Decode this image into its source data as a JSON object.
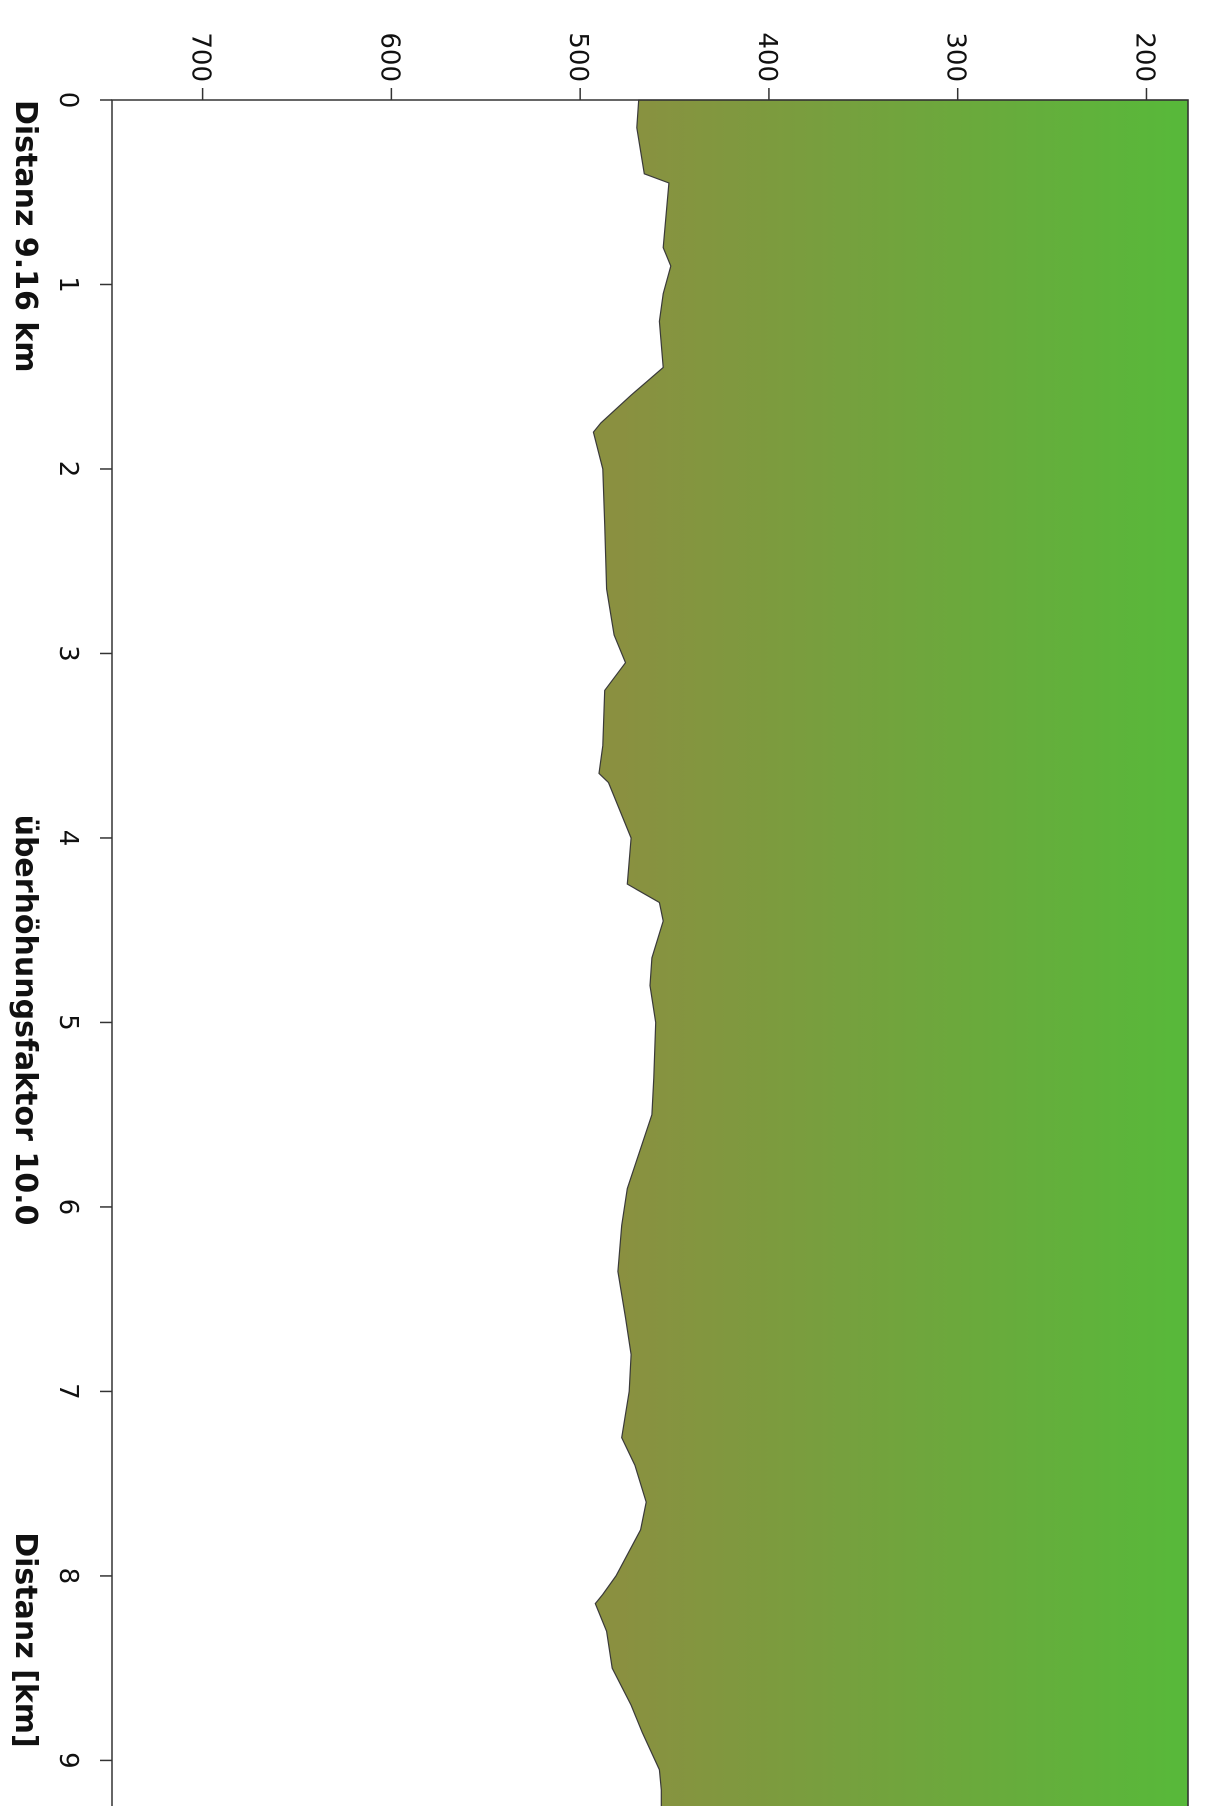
{
  "chart_data": {
    "type": "area",
    "orientation": "rotated-90-clockwise",
    "xlabel": "Distanz [km]",
    "bottom_left_text": "Distanz 9.16 km",
    "bottom_center_text": "überhöhungsfaktor 10.0",
    "xlim": [
      0,
      9.35
    ],
    "ylim": [
      178,
      748
    ],
    "x_ticks": [
      0,
      1,
      2,
      3,
      4,
      5,
      6,
      7,
      8,
      9
    ],
    "x_tick_labels": [
      "0",
      "1",
      "2",
      "3",
      "4",
      "5",
      "6",
      "7",
      "8",
      "9"
    ],
    "y_ticks": [
      200,
      300,
      400,
      500,
      600,
      700
    ],
    "y_tick_labels": [
      "200",
      "300",
      "400",
      "500",
      "600",
      "700"
    ],
    "grid": false,
    "fill_gradient": {
      "from": "#57b93a",
      "to": "#8a9040"
    },
    "series": [
      {
        "x": [
          0,
          0.15,
          0.4,
          0.45,
          0.8,
          0.9,
          1.05,
          1.2,
          1.45,
          1.6,
          1.75,
          1.8,
          2.0,
          2.3,
          2.65,
          2.9,
          3.05,
          3.2,
          3.5,
          3.65,
          3.7,
          4.0,
          4.25,
          4.35,
          4.45,
          4.65,
          4.8,
          5.0,
          5.3,
          5.5,
          5.9,
          6.1,
          6.35,
          6.6,
          6.8,
          7.0,
          7.25,
          7.4,
          7.6,
          7.75,
          8.0,
          8.1,
          8.15,
          8.3,
          8.5,
          8.7,
          8.85,
          9.05,
          9.16
        ],
        "y": [
          469,
          470,
          466,
          453,
          456,
          452,
          456,
          458,
          456,
          473,
          489,
          493,
          488,
          487,
          486,
          482,
          476,
          487,
          488,
          490,
          485,
          473,
          475,
          458,
          456,
          462,
          463,
          460,
          461,
          462,
          475,
          478,
          480,
          476,
          473,
          474,
          478,
          471,
          465,
          468,
          481,
          488,
          492,
          486,
          483,
          473,
          467,
          458,
          457
        ]
      }
    ]
  }
}
